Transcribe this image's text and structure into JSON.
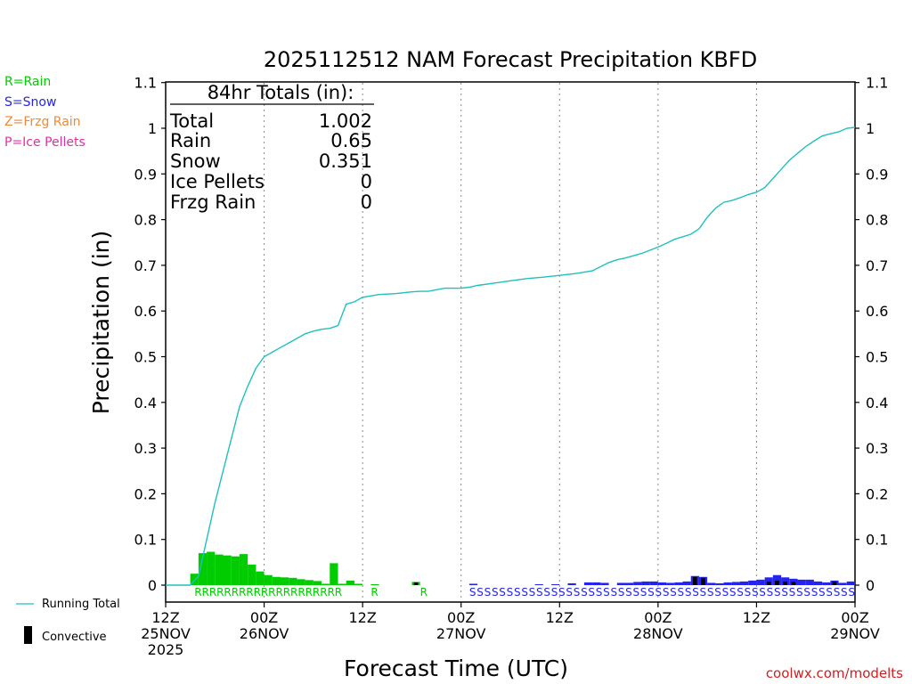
{
  "chart_data": {
    "type": "bar",
    "title": "2025112512 NAM Forecast Precipitation KBFD",
    "xlabel": "Forecast Time (UTC)",
    "ylabel": "Precipitation (in)",
    "ylim": [
      -0.05,
      1.1
    ],
    "y_ticks": [
      0,
      0.1,
      0.2,
      0.3,
      0.4,
      0.5,
      0.6,
      0.7,
      0.8,
      0.9,
      1,
      1.1
    ],
    "y_tick_labels": [
      "0",
      "0.1",
      "0.2",
      "0.3",
      "0.4",
      "0.5",
      "0.6",
      "0.7",
      "0.8",
      "0.9",
      "1",
      "1.1"
    ],
    "xlim": [
      0,
      84
    ],
    "x_ticks": [
      {
        "hour": 0,
        "lines": [
          "12Z",
          "25NOV",
          "2025"
        ]
      },
      {
        "hour": 12,
        "lines": [
          "00Z",
          "26NOV"
        ]
      },
      {
        "hour": 24,
        "lines": [
          "12Z"
        ]
      },
      {
        "hour": 36,
        "lines": [
          "00Z",
          "27NOV"
        ]
      },
      {
        "hour": 48,
        "lines": [
          "12Z"
        ]
      },
      {
        "hour": 60,
        "lines": [
          "00Z",
          "28NOV"
        ]
      },
      {
        "hour": 72,
        "lines": [
          "12Z"
        ]
      },
      {
        "hour": 84,
        "lines": [
          "00Z",
          "29NOV"
        ]
      }
    ],
    "grid_hours": [
      12,
      24,
      36,
      48,
      60,
      72
    ],
    "rain_bars": [
      {
        "h": 4,
        "v": 0.025
      },
      {
        "h": 5,
        "v": 0.07
      },
      {
        "h": 6,
        "v": 0.073
      },
      {
        "h": 7,
        "v": 0.067
      },
      {
        "h": 8,
        "v": 0.065
      },
      {
        "h": 9,
        "v": 0.063
      },
      {
        "h": 10,
        "v": 0.068
      },
      {
        "h": 11,
        "v": 0.045
      },
      {
        "h": 12,
        "v": 0.03
      },
      {
        "h": 13,
        "v": 0.022
      },
      {
        "h": 14,
        "v": 0.018
      },
      {
        "h": 15,
        "v": 0.017
      },
      {
        "h": 16,
        "v": 0.016
      },
      {
        "h": 17,
        "v": 0.013
      },
      {
        "h": 18,
        "v": 0.011
      },
      {
        "h": 19,
        "v": 0.009
      },
      {
        "h": 20,
        "v": 0.003
      },
      {
        "h": 21,
        "v": 0.048
      },
      {
        "h": 22,
        "v": 0.003
      },
      {
        "h": 23,
        "v": 0.01
      },
      {
        "h": 24,
        "v": 0.003
      },
      {
        "h": 26,
        "v": 0.002
      },
      {
        "h": 31,
        "v": 0.007
      }
    ],
    "snow_bars": [
      {
        "h": 38,
        "v": 0.003
      },
      {
        "h": 46,
        "v": 0.002
      },
      {
        "h": 48,
        "v": 0.002
      },
      {
        "h": 50,
        "v": 0.004
      },
      {
        "h": 52,
        "v": 0.006
      },
      {
        "h": 53,
        "v": 0.006
      },
      {
        "h": 54,
        "v": 0.005
      },
      {
        "h": 56,
        "v": 0.005
      },
      {
        "h": 57,
        "v": 0.005
      },
      {
        "h": 58,
        "v": 0.007
      },
      {
        "h": 59,
        "v": 0.008
      },
      {
        "h": 60,
        "v": 0.008
      },
      {
        "h": 61,
        "v": 0.006
      },
      {
        "h": 62,
        "v": 0.005
      },
      {
        "h": 63,
        "v": 0.006
      },
      {
        "h": 64,
        "v": 0.008
      },
      {
        "h": 65,
        "v": 0.02
      },
      {
        "h": 66,
        "v": 0.018
      },
      {
        "h": 67,
        "v": 0.005
      },
      {
        "h": 68,
        "v": 0.004
      },
      {
        "h": 69,
        "v": 0.006
      },
      {
        "h": 70,
        "v": 0.007
      },
      {
        "h": 71,
        "v": 0.008
      },
      {
        "h": 72,
        "v": 0.01
      },
      {
        "h": 73,
        "v": 0.012
      },
      {
        "h": 74,
        "v": 0.017
      },
      {
        "h": 75,
        "v": 0.022
      },
      {
        "h": 76,
        "v": 0.017
      },
      {
        "h": 77,
        "v": 0.014
      },
      {
        "h": 78,
        "v": 0.012
      },
      {
        "h": 79,
        "v": 0.012
      },
      {
        "h": 80,
        "v": 0.008
      },
      {
        "h": 81,
        "v": 0.006
      },
      {
        "h": 82,
        "v": 0.01
      },
      {
        "h": 83,
        "v": 0.005
      },
      {
        "h": 84,
        "v": 0.008
      }
    ],
    "convective_bars": [
      {
        "h": 31,
        "v": 0.006
      },
      {
        "h": 65,
        "v": 0.018
      },
      {
        "h": 66,
        "v": 0.016
      },
      {
        "h": 74,
        "v": 0.008
      },
      {
        "h": 75,
        "v": 0.01
      },
      {
        "h": 76,
        "v": 0.008
      },
      {
        "h": 77,
        "v": 0.007
      },
      {
        "h": 82,
        "v": 0.008
      }
    ],
    "running_total": {
      "hours": [
        0,
        2,
        3,
        4,
        5,
        6,
        7,
        8,
        9,
        10,
        11,
        12,
        13,
        14,
        15,
        16,
        17,
        18,
        19,
        20,
        21,
        22,
        23,
        24,
        26,
        28,
        30,
        31,
        32,
        34,
        36,
        37,
        38,
        40,
        42,
        44,
        46,
        48,
        50,
        52,
        53,
        54,
        55,
        56,
        58,
        60,
        61,
        62,
        64,
        65,
        66,
        67,
        68,
        69,
        70,
        71,
        72,
        73,
        74,
        75,
        76,
        77,
        78,
        79,
        80,
        81,
        82,
        83,
        84
      ],
      "values": [
        0,
        0,
        0,
        0.02,
        0.1,
        0.18,
        0.25,
        0.32,
        0.39,
        0.435,
        0.475,
        0.5,
        0.51,
        0.52,
        0.53,
        0.54,
        0.55,
        0.556,
        0.56,
        0.562,
        0.568,
        0.615,
        0.62,
        0.63,
        0.636,
        0.638,
        0.642,
        0.643,
        0.643,
        0.65,
        0.65,
        0.652,
        0.656,
        0.661,
        0.666,
        0.671,
        0.674,
        0.678,
        0.682,
        0.688,
        0.697,
        0.706,
        0.712,
        0.716,
        0.726,
        0.74,
        0.748,
        0.757,
        0.768,
        0.78,
        0.805,
        0.825,
        0.838,
        0.842,
        0.848,
        0.855,
        0.86,
        0.87,
        0.89,
        0.91,
        0.93,
        0.945,
        0.96,
        0.972,
        0.983,
        0.988,
        0.992,
        1.0,
        1.002
      ]
    },
    "rain_label_hours": [
      3.5,
      21.5,
      25,
      26,
      31
    ],
    "snow_label_hours": [
      37,
      84
    ],
    "colors": {
      "rain": "#00cc00",
      "snow": "#2424ee",
      "frzg_rain": "#ee8a36",
      "ice_pellets": "#e030a0",
      "running_total": "#20c0c0",
      "convective": "#000000"
    }
  },
  "legend_types": [
    {
      "text": "R=Rain",
      "color": "#00cc00"
    },
    {
      "text": "S=Snow",
      "color": "#2424ee"
    },
    {
      "text": "Z=Frzg Rain",
      "color": "#ee8a36"
    },
    {
      "text": "P=Ice Pellets",
      "color": "#e030a0"
    }
  ],
  "totals_box": {
    "header": "84hr Totals (in):",
    "rows": [
      {
        "label": "Total",
        "value": "1.002"
      },
      {
        "label": "Rain",
        "value": "0.65"
      },
      {
        "label": "Snow",
        "value": "0.351"
      },
      {
        "label": "Ice Pellets",
        "value": "0"
      },
      {
        "label": "Frzg Rain",
        "value": "0"
      }
    ]
  },
  "legend_bottom": {
    "running_total": "Running Total",
    "convective": "Convective"
  },
  "credit": "coolwx.com/modelts",
  "rain_letter": "R",
  "snow_letter": "S"
}
